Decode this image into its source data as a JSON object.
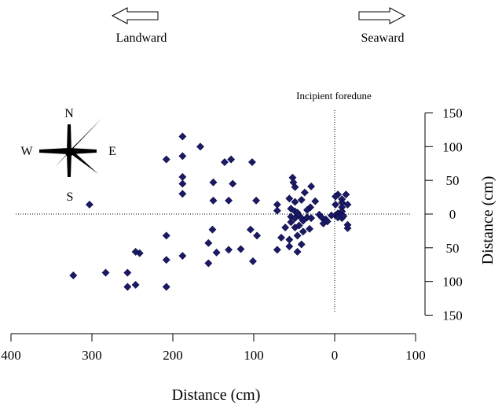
{
  "header": {
    "landward_label": "Landward",
    "seaward_label": "Seaward"
  },
  "compass": {
    "north": "N",
    "south": "S",
    "east": "E",
    "west": "W"
  },
  "annotation": {
    "foredune_label": "Incipient foredune"
  },
  "chart_data": {
    "type": "scatter",
    "xlabel": "Distance (cm)",
    "ylabel": "Distance (cm)",
    "xlim": [
      400,
      -100
    ],
    "ylim": [
      -150,
      150
    ],
    "x_ticks": [
      400,
      300,
      200,
      100,
      0,
      -100
    ],
    "x_tick_labels": [
      "400",
      "300",
      "200",
      "100",
      "0",
      "100"
    ],
    "y_ticks": [
      150,
      100,
      50,
      0,
      -50,
      -100,
      -150
    ],
    "y_tick_labels": [
      "150",
      "100",
      "50",
      "0",
      "50",
      "100",
      "150"
    ],
    "reference_lines": {
      "x": 0,
      "y": 0
    },
    "marker": "diamond",
    "colors": {
      "marker": "#1a1a66",
      "axis": "#000000"
    },
    "points": [
      [
        188,
        115
      ],
      [
        166,
        100
      ],
      [
        208,
        81
      ],
      [
        188,
        86
      ],
      [
        136,
        77
      ],
      [
        128,
        81
      ],
      [
        102,
        77
      ],
      [
        188,
        55
      ],
      [
        188,
        45
      ],
      [
        150,
        47
      ],
      [
        126,
        45
      ],
      [
        188,
        30
      ],
      [
        97,
        20
      ],
      [
        131,
        20
      ],
      [
        150,
        20
      ],
      [
        303,
        14
      ],
      [
        -14,
        29
      ],
      [
        -4,
        29
      ],
      [
        -1,
        26
      ],
      [
        -9,
        22
      ],
      [
        -9,
        17
      ],
      [
        -16,
        14
      ],
      [
        -1,
        14
      ],
      [
        -9,
        10
      ],
      [
        -9,
        4
      ],
      [
        -4,
        1
      ],
      [
        -6,
        -2
      ],
      [
        -1,
        -2
      ],
      [
        4,
        -2
      ],
      [
        -9,
        -6
      ],
      [
        -4,
        -5
      ],
      [
        -16,
        -16
      ],
      [
        -16,
        -21
      ],
      [
        -11,
        -3
      ],
      [
        52,
        54
      ],
      [
        51,
        47
      ],
      [
        49,
        40
      ],
      [
        29,
        41
      ],
      [
        37,
        32
      ],
      [
        41,
        21
      ],
      [
        56,
        23
      ],
      [
        49,
        18
      ],
      [
        71,
        14
      ],
      [
        71,
        5
      ],
      [
        24,
        19
      ],
      [
        30,
        10
      ],
      [
        34,
        6
      ],
      [
        54,
        8
      ],
      [
        49,
        4
      ],
      [
        46,
        2
      ],
      [
        44,
        -2
      ],
      [
        54,
        -4
      ],
      [
        49,
        -6
      ],
      [
        41,
        -6
      ],
      [
        39,
        -10
      ],
      [
        34,
        -5
      ],
      [
        29,
        -6
      ],
      [
        19,
        -1
      ],
      [
        16,
        -5
      ],
      [
        11,
        -8
      ],
      [
        9,
        -11
      ],
      [
        14,
        -14
      ],
      [
        54,
        -12
      ],
      [
        49,
        -20
      ],
      [
        44,
        -17
      ],
      [
        61,
        -20
      ],
      [
        39,
        -26
      ],
      [
        31,
        -22
      ],
      [
        66,
        -35
      ],
      [
        46,
        -32
      ],
      [
        56,
        -38
      ],
      [
        41,
        -45
      ],
      [
        56,
        -48
      ],
      [
        71,
        -53
      ],
      [
        46,
        -56
      ],
      [
        151,
        -23
      ],
      [
        104,
        -23
      ],
      [
        208,
        -32
      ],
      [
        156,
        -43
      ],
      [
        96,
        -32
      ],
      [
        146,
        -57
      ],
      [
        131,
        -53
      ],
      [
        116,
        -52
      ],
      [
        188,
        -62
      ],
      [
        156,
        -73
      ],
      [
        101,
        -70
      ],
      [
        241,
        -58
      ],
      [
        246,
        -56
      ],
      [
        208,
        -68
      ],
      [
        283,
        -87
      ],
      [
        256,
        -87
      ],
      [
        323,
        -91
      ],
      [
        246,
        -105
      ],
      [
        256,
        -108
      ],
      [
        208,
        -108
      ]
    ]
  }
}
